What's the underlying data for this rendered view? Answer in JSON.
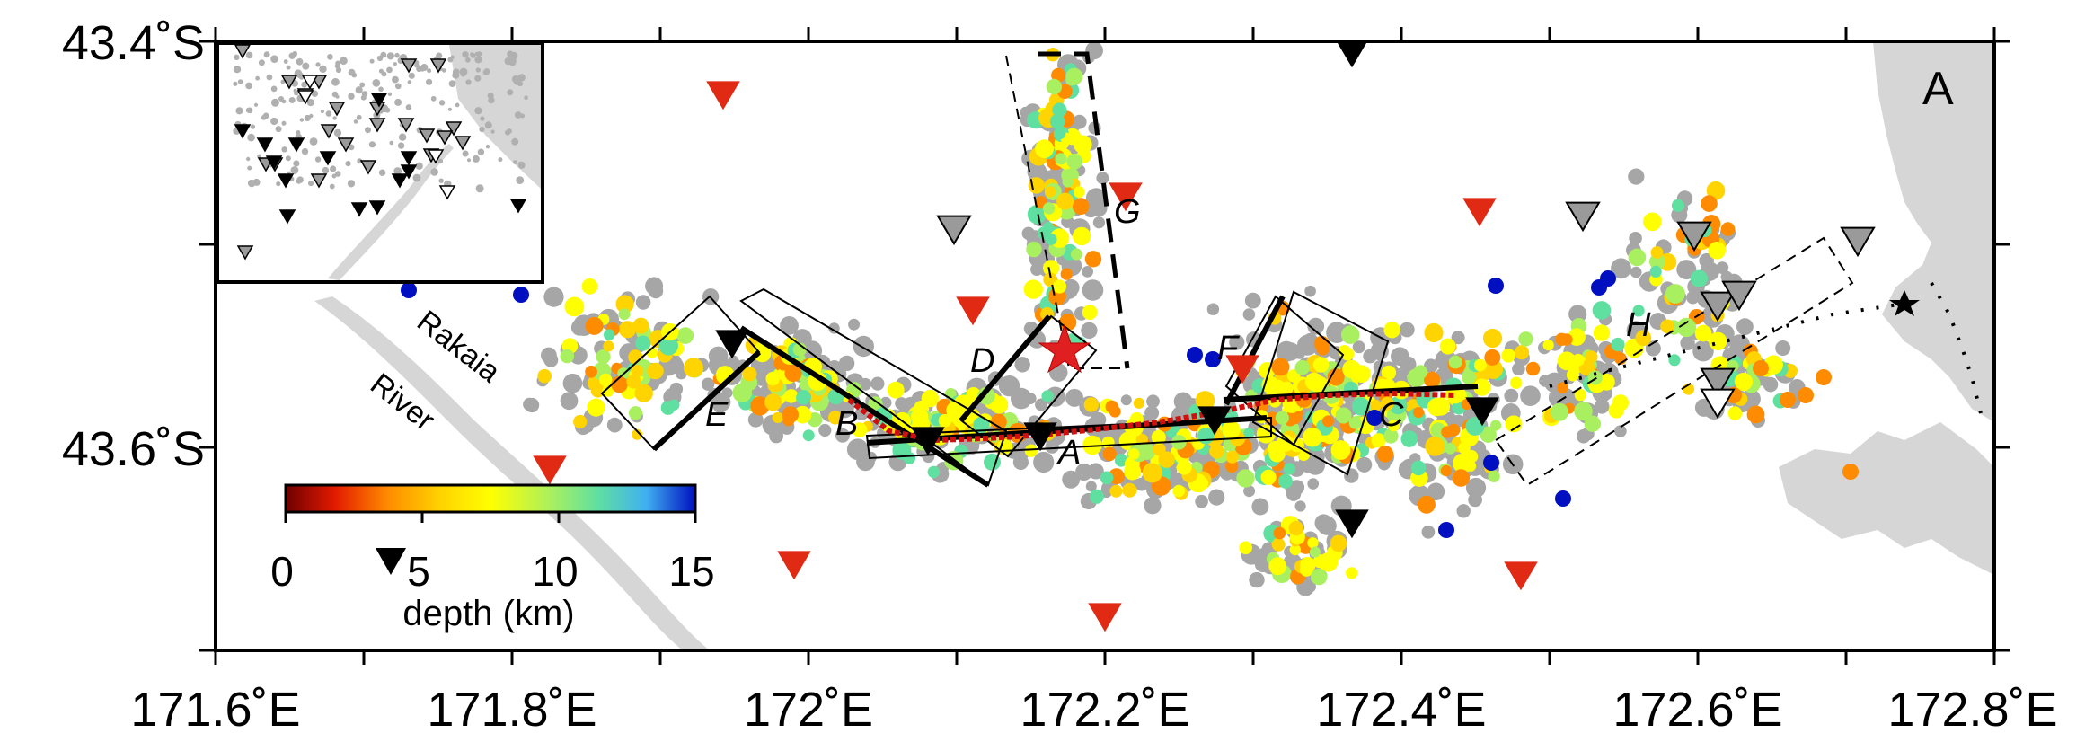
{
  "map": {
    "panel_label": "A",
    "river_name": [
      "Rakaia",
      "River"
    ],
    "lat_ticks": [
      "43.4˚S",
      "43.6˚S"
    ],
    "lon_ticks": [
      "171.6˚E",
      "171.8˚E",
      "172˚E",
      "172.2˚E",
      "172.4˚E",
      "172.6˚E",
      "172.8˚E"
    ],
    "extent": {
      "lon": [
        171.6,
        172.8
      ],
      "lat": [
        -43.7,
        -43.4
      ]
    },
    "segments": [
      "A",
      "B",
      "C",
      "D",
      "E",
      "F",
      "G",
      "H"
    ]
  },
  "colorbar": {
    "title": "depth (km)",
    "ticks": [
      "0",
      "5",
      "10",
      "15"
    ],
    "range": [
      0,
      15
    ],
    "colors": [
      "#6e0000",
      "#e21a00",
      "#ff8c00",
      "#ffd400",
      "#ffff00",
      "#a8f060",
      "#60e0a0",
      "#40b0f0",
      "#0010c0"
    ]
  },
  "legend_colors": {
    "events_no_depth": "#a6a6a6",
    "mainshock_star": "#e02020",
    "station_red": "#e02a14",
    "station_black": "#000000",
    "station_gray": "#9a9a9a",
    "land_gray": "#d6d6d6",
    "rupture_red": "#d01010"
  },
  "icons": [
    "station-triangle-icon",
    "epicenter-star-icon"
  ]
}
